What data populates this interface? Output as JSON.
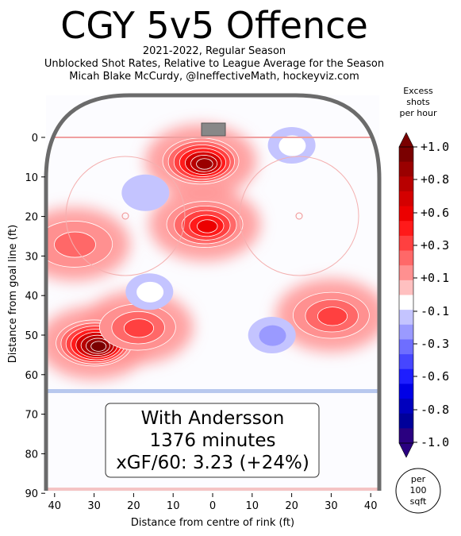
{
  "header": {
    "title": "CGY 5v5 Offence",
    "subtitle_lines": [
      "2021-2022, Regular Season",
      "Unblocked Shot Rates, Relative to League Average for the Season",
      "Micah Blake McCurdy, @IneffectiveMath, hockeyviz.com"
    ]
  },
  "annotation": {
    "lines": [
      "With Andersson",
      "1376 minutes",
      "xGF/60: 3.23 (+24%)"
    ]
  },
  "colorbar": {
    "title_lines": [
      "Excess",
      "shots",
      "per hour"
    ],
    "tick_labels": [
      "+1.0",
      "+0.8",
      "+0.6",
      "+0.3",
      "+0.1",
      "-0.1",
      "-0.3",
      "-0.6",
      "-0.8",
      "-1.0"
    ],
    "unit_lines": [
      "per",
      "100",
      "sqft"
    ],
    "colors": [
      "#7a0000",
      "#9a0000",
      "#b80000",
      "#d40000",
      "#ec0000",
      "#ff1a1a",
      "#ff4040",
      "#ff6868",
      "#ff9090",
      "#ffc0c0",
      "#ffffff",
      "#c4c4ff",
      "#9a9aff",
      "#6e6eff",
      "#4646ff",
      "#1e1eff",
      "#0000e6",
      "#0000be",
      "#00009a",
      "#2a0080"
    ]
  },
  "chart_data": {
    "type": "heatmap",
    "title": "CGY 5v5 Offence",
    "xlabel": "Distance from centre of rink (ft)",
    "ylabel": "Distance from goal line (ft)",
    "xlim": [
      42.5,
      -42.5
    ],
    "ylim": [
      90,
      -11
    ],
    "x_ticks": [
      "40",
      "30",
      "20",
      "10",
      "0",
      "10",
      "20",
      "30",
      "40"
    ],
    "x_tick_values": [
      40,
      30,
      20,
      10,
      0,
      -10,
      -20,
      -30,
      -40
    ],
    "y_ticks": [
      "0",
      "10",
      "20",
      "30",
      "40",
      "50",
      "60",
      "70",
      "80",
      "90"
    ],
    "y_tick_values": [
      0,
      10,
      20,
      30,
      40,
      50,
      60,
      70,
      80,
      90
    ],
    "value_range": [
      -1.0,
      1.0
    ],
    "hotspots": [
      {
        "x": 30,
        "y": 52,
        "value": 1.0
      },
      {
        "x": 3,
        "y": 6,
        "value": 0.9
      },
      {
        "x": 2,
        "y": 22,
        "value": 0.6
      },
      {
        "x": 19,
        "y": 48,
        "value": 0.4
      },
      {
        "x": -30,
        "y": 45,
        "value": 0.4
      },
      {
        "x": 35,
        "y": 27,
        "value": 0.3
      },
      {
        "x": -15,
        "y": 50,
        "value": -0.3
      },
      {
        "x": 17,
        "y": 14,
        "value": -0.2
      },
      {
        "x": 16,
        "y": 39,
        "value": -0.1
      },
      {
        "x": -20,
        "y": 2,
        "value": -0.1
      }
    ]
  }
}
